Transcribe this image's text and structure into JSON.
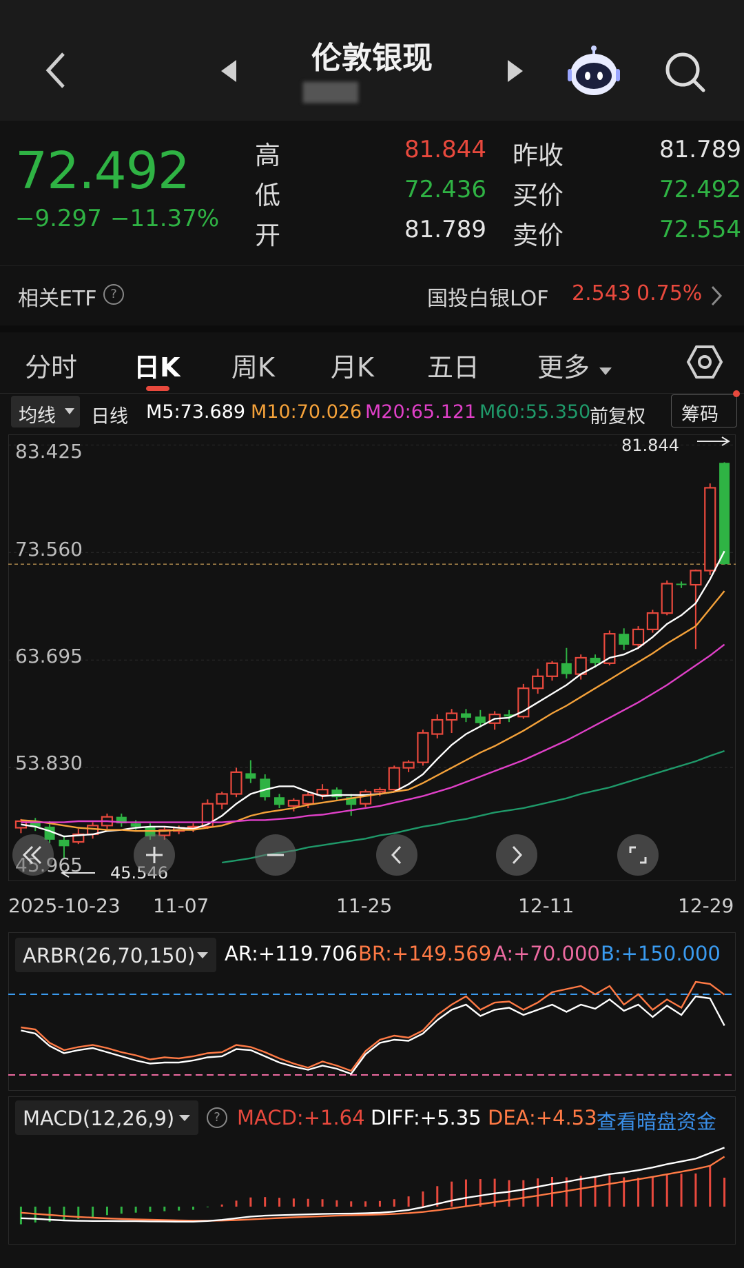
{
  "header": {
    "title": "伦敦银现",
    "subtitle": "████ ",
    "back_icon": "chevron-left-icon",
    "prev_icon": "triangle-left-icon",
    "next_icon": "triangle-right-icon",
    "assistant_icon": "robot-icon",
    "search_icon": "search-icon"
  },
  "quote": {
    "price": "72.492",
    "change": "−9.297",
    "change_pct": "−11.37%",
    "stats": [
      {
        "label": "高",
        "value": "81.844",
        "color": "red"
      },
      {
        "label": "低",
        "value": "72.436",
        "color": "green"
      },
      {
        "label": "开",
        "value": "81.789",
        "color": "white"
      },
      {
        "label": "昨收",
        "value": "81.789",
        "color": "white"
      },
      {
        "label": "买价",
        "value": "72.492",
        "color": "green"
      },
      {
        "label": "卖价",
        "value": "72.554",
        "color": "green"
      }
    ]
  },
  "etf": {
    "label": "相关ETF",
    "name": "国投白银LOF",
    "price": "2.543",
    "pct": "0.75%"
  },
  "tabs": [
    "分时",
    "日K",
    "周K",
    "月K",
    "五日",
    "更多"
  ],
  "active_tab": "日K",
  "ma_row": {
    "selector": "均线",
    "period": "日线",
    "m5": "M5:73.689",
    "m10": "M10:70.026",
    "m20": "M20:65.121",
    "m60": "M60:55.350",
    "adjust": "前复权",
    "chips": "筹码"
  },
  "colors": {
    "up": "#e8493d",
    "down": "#2fb344",
    "m5": "#ffffff",
    "m10": "#f5a23a",
    "m20": "#e040c8",
    "m60": "#1f9a6a",
    "accent": "#e8493d"
  },
  "kchart": {
    "y_labels": [
      "83.425",
      "73.560",
      "63.695",
      "53.830",
      "45.965"
    ],
    "x_labels": [
      "2025-10-23",
      "11-07",
      "11-25",
      "12-11",
      "12-29"
    ],
    "high_marker": "81.844",
    "low_marker": "45.546",
    "last_price_line": 72.492
  },
  "chart_data": {
    "type": "candlestick",
    "ylim": [
      43.9,
      84.4
    ],
    "candles": [
      [
        48.3,
        49.1,
        47.8,
        48.9
      ],
      [
        48.9,
        49.2,
        48.0,
        48.4
      ],
      [
        48.4,
        48.9,
        46.9,
        47.2
      ],
      [
        47.2,
        47.6,
        45.5,
        46.6
      ],
      [
        47.0,
        48.2,
        46.8,
        47.7
      ],
      [
        47.7,
        48.8,
        47.3,
        48.5
      ],
      [
        48.5,
        49.6,
        48.2,
        49.3
      ],
      [
        49.3,
        49.6,
        48.4,
        48.7
      ],
      [
        48.7,
        49.0,
        48.1,
        48.4
      ],
      [
        48.4,
        48.7,
        47.2,
        47.5
      ],
      [
        47.6,
        48.4,
        47.2,
        48.1
      ],
      [
        48.0,
        48.5,
        47.7,
        48.3
      ],
      [
        48.3,
        48.7,
        47.9,
        48.4
      ],
      [
        48.4,
        50.9,
        48.2,
        50.5
      ],
      [
        50.5,
        51.6,
        50.0,
        51.4
      ],
      [
        51.4,
        53.8,
        51.1,
        53.4
      ],
      [
        53.3,
        54.5,
        52.4,
        52.8
      ],
      [
        52.8,
        53.2,
        50.8,
        51.1
      ],
      [
        51.1,
        51.4,
        50.1,
        50.4
      ],
      [
        50.3,
        51.0,
        49.8,
        50.8
      ],
      [
        50.5,
        51.6,
        50.1,
        51.3
      ],
      [
        51.3,
        52.3,
        50.9,
        51.8
      ],
      [
        51.8,
        52.0,
        50.8,
        51.1
      ],
      [
        51.1,
        51.4,
        49.4,
        50.4
      ],
      [
        50.5,
        51.8,
        50.2,
        51.6
      ],
      [
        51.6,
        52.0,
        51.2,
        51.8
      ],
      [
        51.8,
        54.0,
        51.7,
        53.8
      ],
      [
        53.8,
        54.5,
        53.4,
        54.3
      ],
      [
        54.3,
        57.3,
        54.0,
        57.0
      ],
      [
        56.9,
        58.7,
        56.5,
        58.2
      ],
      [
        58.2,
        59.2,
        57.0,
        58.8
      ],
      [
        58.8,
        59.2,
        58.0,
        58.4
      ],
      [
        58.5,
        59.1,
        57.5,
        57.9
      ],
      [
        57.9,
        59.0,
        57.3,
        58.7
      ],
      [
        58.7,
        59.1,
        58.0,
        58.5
      ],
      [
        58.5,
        61.5,
        58.3,
        61.1
      ],
      [
        61.1,
        62.9,
        60.6,
        62.2
      ],
      [
        62.2,
        63.6,
        61.8,
        63.4
      ],
      [
        63.4,
        64.8,
        62.0,
        62.4
      ],
      [
        62.4,
        64.2,
        61.9,
        63.9
      ],
      [
        63.9,
        64.2,
        63.0,
        63.4
      ],
      [
        63.4,
        66.4,
        63.2,
        66.1
      ],
      [
        66.1,
        66.6,
        64.6,
        65.1
      ],
      [
        65.1,
        66.8,
        64.7,
        66.5
      ],
      [
        66.5,
        68.3,
        66.2,
        68.0
      ],
      [
        68.0,
        71.0,
        67.8,
        70.7
      ],
      [
        70.7,
        70.9,
        70.3,
        70.6
      ],
      [
        70.6,
        72.0,
        64.7,
        71.9
      ],
      [
        71.9,
        79.9,
        71.5,
        79.5
      ],
      [
        81.789,
        81.844,
        72.436,
        72.492
      ]
    ],
    "ma": {
      "M5": [
        48.6,
        48.4,
        48.0,
        47.5,
        47.6,
        47.7,
        48.0,
        48.1,
        48.3,
        48.4,
        48.4,
        48.3,
        48.2,
        48.6,
        49.4,
        50.5,
        51.4,
        51.8,
        52.1,
        52.1,
        51.6,
        51.2,
        51.3,
        51.3,
        51.3,
        51.4,
        51.6,
        52.3,
        53.2,
        54.6,
        55.9,
        56.9,
        57.6,
        58.3,
        58.4,
        59.0,
        59.8,
        60.6,
        61.4,
        62.4,
        63.1,
        63.9,
        64.2,
        64.8,
        65.8,
        67.0,
        67.8,
        68.9,
        71.1,
        73.689
      ],
      "M10": [
        49.0,
        48.9,
        48.7,
        48.5,
        48.3,
        48.2,
        48.1,
        48.1,
        48.0,
        48.0,
        48.0,
        48.1,
        48.1,
        48.3,
        48.5,
        48.9,
        49.4,
        49.7,
        49.9,
        50.1,
        50.4,
        50.6,
        50.8,
        51.0,
        51.2,
        51.4,
        51.6,
        51.8,
        52.4,
        53.1,
        53.8,
        54.5,
        55.2,
        55.8,
        56.5,
        57.2,
        58.0,
        58.8,
        59.5,
        60.3,
        61.1,
        61.9,
        62.7,
        63.5,
        64.3,
        65.2,
        66.0,
        66.8,
        68.4,
        70.026
      ],
      "M20": [
        48.8,
        48.8,
        48.8,
        48.8,
        48.9,
        48.9,
        48.9,
        48.8,
        48.8,
        48.8,
        48.8,
        48.8,
        48.8,
        48.8,
        48.8,
        48.9,
        49.0,
        49.0,
        49.1,
        49.2,
        49.4,
        49.5,
        49.7,
        49.9,
        50.1,
        50.3,
        50.6,
        50.9,
        51.2,
        51.6,
        52.0,
        52.5,
        53.0,
        53.5,
        54.0,
        54.5,
        55.1,
        55.7,
        56.3,
        57.0,
        57.7,
        58.4,
        59.1,
        59.8,
        60.6,
        61.4,
        62.3,
        63.2,
        64.1,
        65.121
      ],
      "M60": [
        null,
        null,
        null,
        null,
        null,
        null,
        null,
        null,
        null,
        null,
        null,
        null,
        null,
        null,
        45.1,
        45.3,
        45.5,
        45.8,
        46.0,
        46.2,
        46.5,
        46.7,
        46.9,
        47.1,
        47.3,
        47.6,
        47.8,
        48.1,
        48.4,
        48.6,
        48.9,
        49.1,
        49.4,
        49.7,
        49.9,
        50.1,
        50.4,
        50.7,
        51.0,
        51.4,
        51.7,
        52.0,
        52.4,
        52.8,
        53.2,
        53.6,
        54.0,
        54.4,
        54.9,
        55.35
      ]
    },
    "arbr": {
      "label": "ARBR(26,70,150)",
      "AR": "AR:+119.706",
      "BR": "BR:+149.569",
      "A": "A:+70.000",
      "B": "B:+150.000",
      "ar_series": [
        115,
        112,
        100,
        93,
        96,
        98,
        94,
        90,
        86,
        83,
        84,
        84,
        86,
        89,
        90,
        97,
        96,
        90,
        84,
        80,
        77,
        81,
        78,
        73,
        92,
        103,
        106,
        105,
        112,
        125,
        135,
        140,
        129,
        135,
        137,
        130,
        135,
        140,
        133,
        140,
        136,
        145,
        134,
        140,
        128,
        139,
        130,
        148,
        146,
        119.7
      ],
      "br_series": [
        118,
        116,
        103,
        96,
        99,
        101,
        98,
        94,
        91,
        87,
        89,
        88,
        90,
        93,
        94,
        101,
        99,
        94,
        88,
        83,
        79,
        85,
        81,
        76,
        95,
        106,
        110,
        108,
        115,
        130,
        140,
        148,
        135,
        142,
        143,
        135,
        142,
        152,
        155,
        158,
        150,
        158,
        140,
        150,
        135,
        145,
        137,
        162,
        160,
        149.6
      ]
    },
    "macd": {
      "label": "MACD(12,26,9)",
      "MACD": "MACD:+1.64",
      "DIFF": "DIFF:+5.35",
      "DEA": "DEA:+4.53",
      "link": "查看暗盘资金",
      "diff": [
        -1.05,
        -1.1,
        -1.18,
        -1.25,
        -1.28,
        -1.3,
        -1.3,
        -1.31,
        -1.32,
        -1.34,
        -1.35,
        -1.36,
        -1.36,
        -1.3,
        -1.2,
        -1.05,
        -0.9,
        -0.82,
        -0.78,
        -0.74,
        -0.7,
        -0.66,
        -0.64,
        -0.63,
        -0.6,
        -0.55,
        -0.45,
        -0.3,
        -0.05,
        0.25,
        0.55,
        0.8,
        1.0,
        1.2,
        1.35,
        1.55,
        1.8,
        2.05,
        2.25,
        2.5,
        2.7,
        2.95,
        3.1,
        3.3,
        3.55,
        3.85,
        4.1,
        4.35,
        4.85,
        5.35
      ],
      "dea": [
        -0.55,
        -0.65,
        -0.75,
        -0.85,
        -0.93,
        -1.0,
        -1.06,
        -1.11,
        -1.15,
        -1.19,
        -1.22,
        -1.25,
        -1.27,
        -1.28,
        -1.26,
        -1.22,
        -1.16,
        -1.09,
        -1.03,
        -0.97,
        -0.92,
        -0.87,
        -0.82,
        -0.78,
        -0.75,
        -0.71,
        -0.66,
        -0.59,
        -0.48,
        -0.33,
        -0.16,
        0.03,
        0.22,
        0.41,
        0.6,
        0.8,
        1.0,
        1.21,
        1.42,
        1.63,
        1.84,
        2.06,
        2.27,
        2.48,
        2.7,
        2.93,
        3.17,
        3.41,
        3.7,
        4.53
      ]
    }
  }
}
